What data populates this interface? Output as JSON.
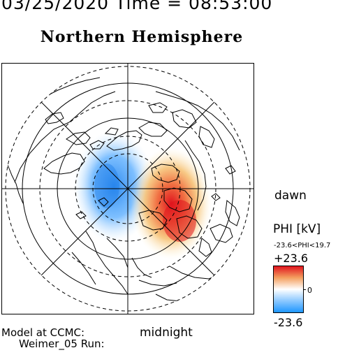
{
  "header": {
    "datetime": "03/25/2020 Time = 08:53:00",
    "title": "Northern Hemisphere"
  },
  "map": {
    "label_right": "dawn",
    "label_bottom": "midnight"
  },
  "model": {
    "line1": "Model at CCMC:",
    "line2": "Weimer_05 Run:"
  },
  "colorbar": {
    "title": "PHI [kV]",
    "range_text": "-23.6<PHI<19.7",
    "max_label": "+23.6",
    "zero_label": "0",
    "min_label": "-23.6",
    "colors": {
      "max": "#e0141e",
      "mid": "#ffffff",
      "min": "#1e96ff"
    }
  },
  "potential_field": {
    "min_kV": -23.6,
    "max_kV": 19.7
  }
}
